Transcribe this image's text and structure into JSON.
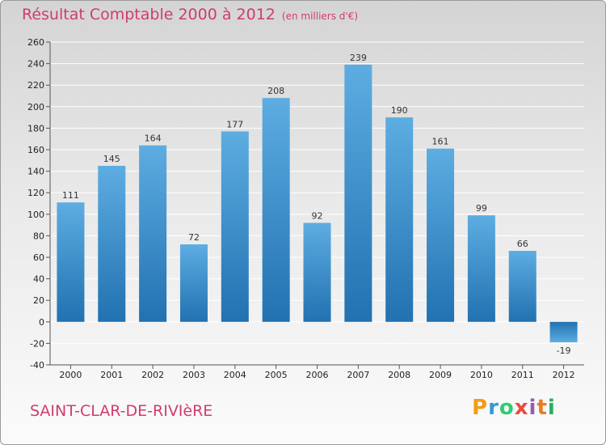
{
  "header": {
    "title": "Résultat Comptable 2000 à 2012",
    "unit": "(en milliers d'€)"
  },
  "footer": {
    "commune": "SAINT-CLAR-DE-RIVIèRE",
    "logo_letters": [
      "P",
      "r",
      "o",
      "x",
      "i",
      "t",
      "i"
    ],
    "logo_colors": [
      "#f39c12",
      "#3498db",
      "#2ecc71",
      "#e74c3c",
      "#9b59b6",
      "#e67e22",
      "#27ae60"
    ]
  },
  "colors": {
    "bar_light": "#5dade2",
    "bar_dark": "#2271b1",
    "accent": "#d13c6d"
  },
  "chart_data": {
    "type": "bar",
    "categories": [
      "2000",
      "2001",
      "2002",
      "2003",
      "2004",
      "2005",
      "2006",
      "2007",
      "2008",
      "2009",
      "2010",
      "2011",
      "2012"
    ],
    "values": [
      111,
      145,
      164,
      72,
      177,
      208,
      92,
      239,
      190,
      161,
      99,
      66,
      -19
    ],
    "value_labels": [
      "111",
      "145",
      "164",
      "72",
      "177",
      "208",
      "92",
      "239",
      "190",
      "161",
      "99",
      "66",
      "-19"
    ],
    "ylim": [
      -40,
      260
    ],
    "yticks": [
      -40,
      -20,
      0,
      20,
      40,
      60,
      80,
      100,
      120,
      140,
      160,
      180,
      200,
      220,
      240,
      260
    ],
    "grid": true,
    "title": "Résultat Comptable 2000 à 2012",
    "xlabel": "",
    "ylabel": ""
  }
}
